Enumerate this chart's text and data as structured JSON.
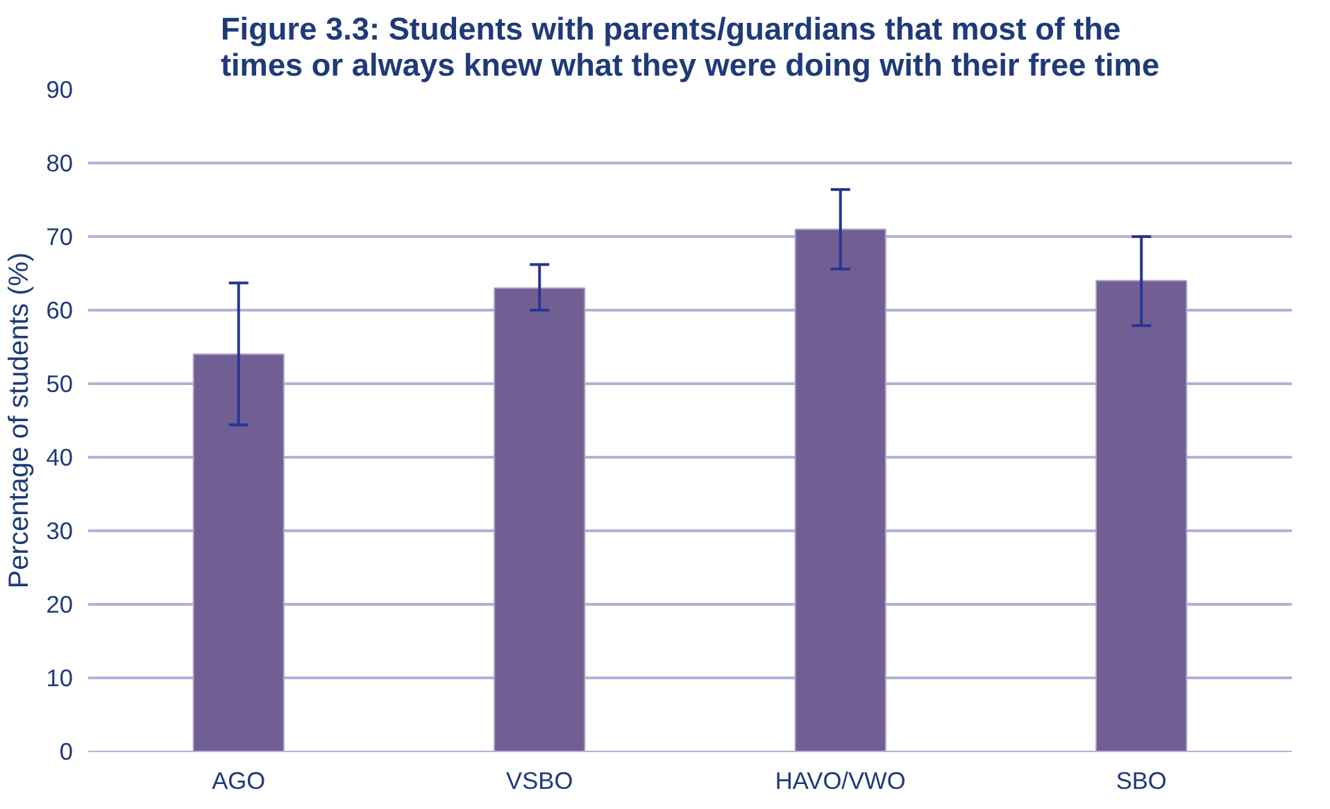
{
  "chart_data": {
    "type": "bar",
    "title": "Figure 3.3: Students with parents/guardians that most of the\ntimes or always knew what they were doing with their free time",
    "ylabel": "Percentage of students (%)",
    "categories": [
      "AGO",
      "VSBO",
      "HAVO/VWO",
      "SBO"
    ],
    "values": [
      54,
      63,
      71,
      64
    ],
    "color": "#715f93",
    "errors": [
      [
        44.4,
        63.7
      ],
      [
        60,
        66.2
      ],
      [
        65.6,
        76.4
      ],
      [
        57.9,
        70
      ]
    ],
    "ylim": [
      0,
      90
    ],
    "yticks": [
      0,
      10,
      20,
      30,
      40,
      50,
      60,
      70,
      80,
      90
    ],
    "grid": "y"
  }
}
